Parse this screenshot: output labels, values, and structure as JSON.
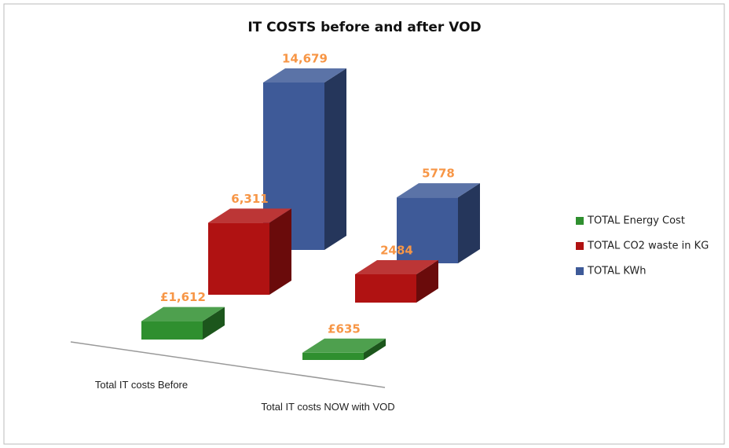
{
  "chart_data": {
    "type": "bar3d",
    "title": "IT COSTS before and after VOD",
    "categories": [
      "Total IT costs Before",
      "Total IT costs NOW with VOD"
    ],
    "series": [
      {
        "name": "TOTAL Energy Cost",
        "color": "#2f8f2f",
        "values": [
          1612,
          635
        ],
        "value_labels": [
          "£1,612",
          "£635"
        ]
      },
      {
        "name": "TOTAL CO2 waste in KG",
        "color": "#b01212",
        "values": [
          6311,
          2484
        ],
        "value_labels": [
          "6,311",
          "2484"
        ]
      },
      {
        "name": "TOTAL KWh",
        "color": "#3e5a98",
        "values": [
          14679,
          5778
        ],
        "value_labels": [
          "14,679",
          "5778"
        ]
      }
    ],
    "label_color": "#f79646",
    "legend": "right"
  }
}
